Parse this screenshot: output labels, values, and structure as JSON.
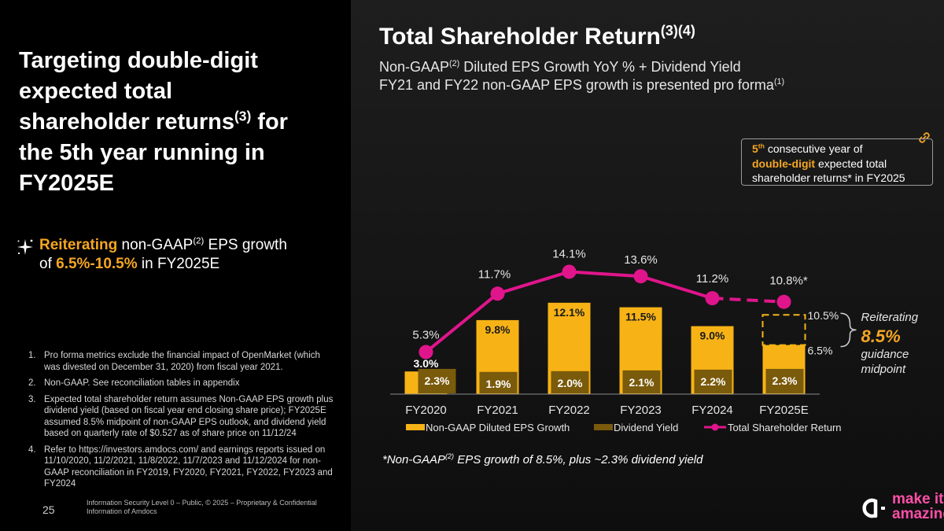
{
  "left": {
    "headline_lines": [
      "Targeting double-digit",
      "expected total",
      "shareholder returns",
      "(3)",
      " for",
      "the 5th year running in",
      "FY2025E"
    ],
    "reiterating": {
      "lead": "Reiterating",
      "text1": " non-GAAP",
      "sup": "(2)",
      "text2": " EPS growth",
      "text3": "of ",
      "range": "6.5%-10.5%",
      "text4": " in FY2025E"
    },
    "footnotes": [
      {
        "num": "1.",
        "text": "Pro forma metrics exclude the financial impact of OpenMarket (which was divested on December 31, 2020) from fiscal year 2021."
      },
      {
        "num": "2.",
        "text": "Non-GAAP. See reconciliation tables in appendix"
      },
      {
        "num": "3.",
        "text": "Expected total shareholder return assumes Non-GAAP EPS growth plus dividend yield (based on fiscal year end closing share price); FY2025E assumed 8.5% midpoint of non-GAAP EPS outlook, and dividend yield based on quarterly rate of $0.527 as of share price on 11/12/24"
      },
      {
        "num": "4.",
        "text": "Refer to https://investors.amdocs.com/ and earnings reports issued on 11/10/2020, 11/2/2021, 11/8/2022, 11/7/2023 and 11/12/2024 for non-GAAP reconciliation in FY2019, FY2020, FY2021, FY2022, FY2023 and FY2024"
      }
    ],
    "page_number": "25",
    "classification": "Information Security Level 0 – Public, © 2025 – Proprietary & Confidential Information of Amdocs"
  },
  "right": {
    "title": "Total Shareholder Return",
    "title_sup": "(3)(4)",
    "subtitle1_a": "Non-GAAP",
    "subtitle1_sup": "(2)",
    "subtitle1_b": " Diluted EPS Growth YoY % + Dividend Yield",
    "subtitle2_a": "FY21 and FY22 non-GAAP EPS growth is presented pro forma",
    "subtitle2_sup": "(1)",
    "callout": {
      "num": "5",
      "sup": "th",
      "t1": " consecutive year of",
      "bold": "double-digit",
      "t2": " expected total",
      "t3": "shareholder returns* in FY2025"
    },
    "note_a": "*Non-GAAP",
    "note_sup": "(2)",
    "note_b": " EPS growth of 8.5%, plus ~2.3% dividend yield",
    "logo_line1": "make it",
    "logo_line2": "amazing"
  },
  "chart_data": {
    "type": "bar+line",
    "categories": [
      "FY2020",
      "FY2021",
      "FY2022",
      "FY2023",
      "FY2024",
      "FY2025E"
    ],
    "series": [
      {
        "name": "Non-GAAP Diluted EPS Growth",
        "type": "bar",
        "color": "#f7b316",
        "values": [
          3.0,
          9.8,
          12.1,
          11.5,
          9.0,
          6.5
        ]
      },
      {
        "name": "Dividend Yield",
        "type": "bar",
        "color": "#7a5a0b",
        "values": [
          2.3,
          1.9,
          2.0,
          2.1,
          2.2,
          2.3
        ]
      },
      {
        "name": "Total Shareholder Return",
        "type": "line",
        "color": "#e0158c",
        "values": [
          5.3,
          11.7,
          14.1,
          13.6,
          11.2,
          10.8
        ]
      }
    ],
    "eps_labels": [
      "3.0%",
      "9.8%",
      "12.1%",
      "11.5%",
      "9.0%",
      ""
    ],
    "div_labels": [
      "2.3%",
      "1.9%",
      "2.0%",
      "2.1%",
      "2.2%",
      "2.3%"
    ],
    "tsr_labels": [
      "5.3%",
      "11.7%",
      "14.1%",
      "13.6%",
      "11.2%",
      "10.8%*"
    ],
    "range_high": 10.5,
    "range_low": 6.5,
    "range_high_label": "10.5%",
    "range_low_label": "6.5%",
    "guidance_text1": "Reiterating",
    "guidance_value": "8.5%",
    "guidance_text2": "guidance",
    "guidance_text3": "midpoint",
    "ylim": [
      0,
      16
    ],
    "legend": [
      "Non-GAAP Diluted EPS Growth",
      "Dividend Yield",
      "Total Shareholder Return"
    ]
  }
}
